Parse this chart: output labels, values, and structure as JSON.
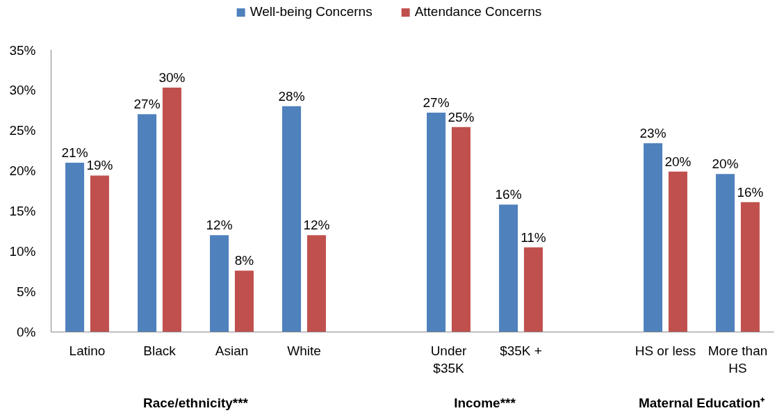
{
  "chart_data": {
    "type": "bar",
    "categories": [
      "Latino",
      "Black",
      "Asian",
      "White",
      null,
      "Under\n$35K",
      "$35K +",
      null,
      "HS or less",
      "More than\nHS"
    ],
    "series": [
      {
        "name": "Well-being Concerns",
        "color": "#4f81bd",
        "values": [
          21.0,
          27.0,
          12.0,
          28.0,
          null,
          27.2,
          15.8,
          null,
          23.4,
          19.6
        ],
        "value_labels": [
          "21%",
          "27%",
          "12%",
          "28%",
          null,
          "27%",
          "16%",
          null,
          "23%",
          "20%"
        ]
      },
      {
        "name": "Attendance Concerns",
        "color": "#c0504d",
        "values": [
          19.4,
          30.3,
          7.6,
          12.0,
          null,
          25.4,
          10.5,
          null,
          19.9,
          16.1
        ],
        "value_labels": [
          "19%",
          "30%",
          "8%",
          "12%",
          null,
          "25%",
          "11%",
          null,
          "20%",
          "16%"
        ]
      }
    ],
    "ylim": [
      0,
      35
    ],
    "yticks": [
      {
        "value": 0,
        "label": "0%"
      },
      {
        "value": 5,
        "label": "5%"
      },
      {
        "value": 10,
        "label": "10%"
      },
      {
        "value": 15,
        "label": "15%"
      },
      {
        "value": 20,
        "label": "20%"
      },
      {
        "value": 25,
        "label": "25%"
      },
      {
        "value": 30,
        "label": "30%"
      },
      {
        "value": 35,
        "label": "35%"
      }
    ],
    "annotations": [
      "Race/ethnicity***",
      "Income***",
      "Maternal Education⁺"
    ],
    "legend": "top",
    "grid": false
  }
}
